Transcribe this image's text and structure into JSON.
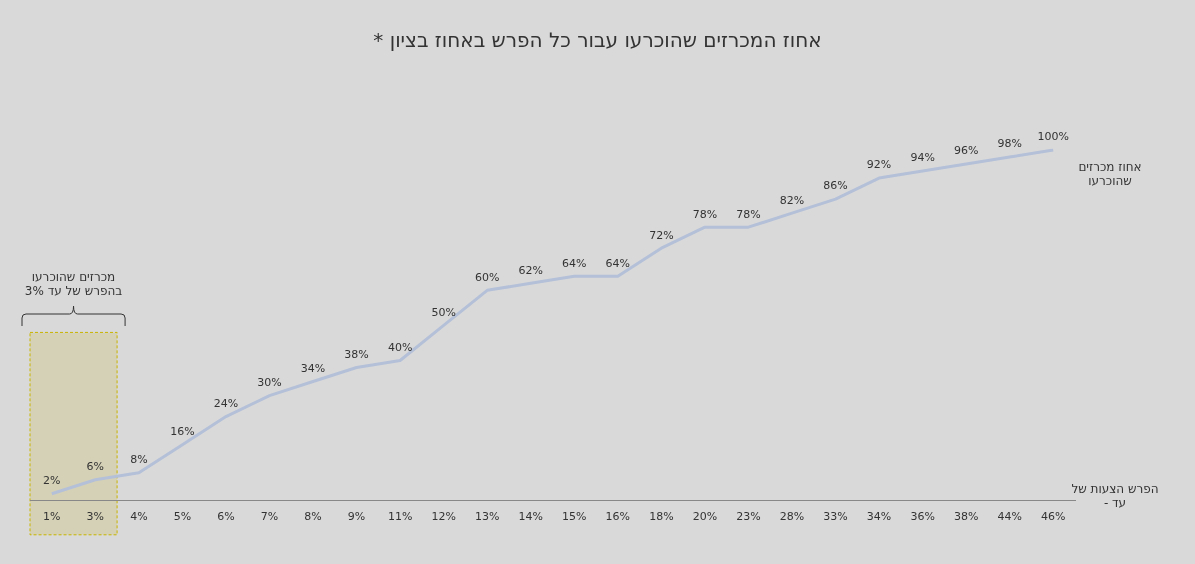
{
  "chart_data": {
    "type": "line",
    "title": "אחוז המכרזים שהוכרעו עבור כל הפרש באחוז בציון *",
    "xlabel": "הפרש הצעות של עד -",
    "ylabel": "אחוז מכרזים שהוכרעו",
    "categories": [
      "1%",
      "3%",
      "4%",
      "5%",
      "6%",
      "7%",
      "8%",
      "9%",
      "11%",
      "12%",
      "13%",
      "14%",
      "15%",
      "16%",
      "18%",
      "20%",
      "23%",
      "28%",
      "33%",
      "34%",
      "36%",
      "38%",
      "44%",
      "46%"
    ],
    "series": [
      {
        "color": "#b4c0d8",
        "values": [
          2,
          6,
          8,
          16,
          24,
          30,
          34,
          38,
          40,
          50,
          60,
          62,
          64,
          64,
          72,
          78,
          78,
          82,
          86,
          92,
          94,
          96,
          98,
          100
        ],
        "value_labels": [
          "2%",
          "6%",
          "8%",
          "16%",
          "24%",
          "30%",
          "34%",
          "38%",
          "40%",
          "50%",
          "60%",
          "62%",
          "64%",
          "64%",
          "72%",
          "78%",
          "78%",
          "82%",
          "86%",
          "92%",
          "94%",
          "96%",
          "98%",
          "100%"
        ]
      }
    ],
    "bands": [
      {
        "axis": "x",
        "from": "1%",
        "to": "3%",
        "label": "מכרזים שהוכרעו בהפרש של עד 3%",
        "color": "#d5d1b6"
      }
    ],
    "grid": false,
    "legend": false,
    "marker": "none",
    "line_style": "solid",
    "tick_labels": "x"
  }
}
